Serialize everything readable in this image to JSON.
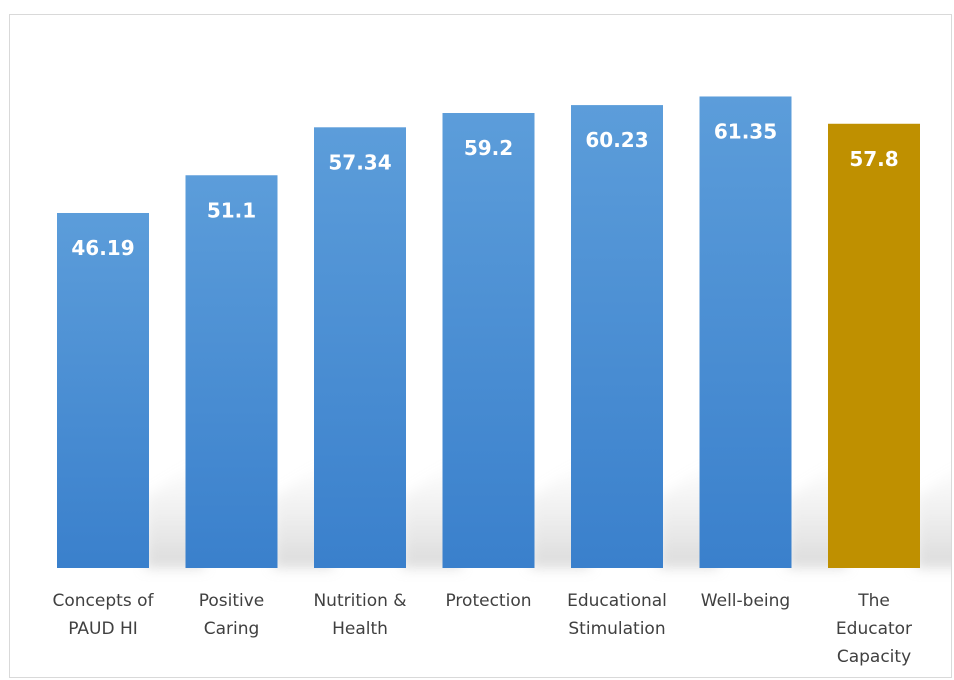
{
  "chart_data": {
    "type": "bar",
    "categories": [
      [
        "Concepts of",
        "PAUD HI"
      ],
      [
        "Positive",
        "Caring"
      ],
      [
        "Nutrition &",
        "Health"
      ],
      [
        "Protection"
      ],
      [
        "Educational",
        "Stimulation"
      ],
      [
        "Well-being"
      ],
      [
        "The",
        "Educator",
        "Capacity"
      ]
    ],
    "values": [
      46.19,
      51.1,
      57.34,
      59.2,
      60.23,
      61.35,
      57.8
    ],
    "data_labels": [
      "46.19",
      "51.1",
      "57.34",
      "59.2",
      "60.23",
      "61.35",
      "57.8"
    ],
    "highlight_index": 6,
    "colors": {
      "bar": "#4a90d6",
      "bar_top": "#5b9ad8",
      "bar_bottom": "#3a80cc",
      "highlight": "#bf9000"
    },
    "ylim": [
      0,
      70
    ],
    "title": "",
    "xlabel": "",
    "ylabel": "",
    "grid": false,
    "legend": "none"
  }
}
